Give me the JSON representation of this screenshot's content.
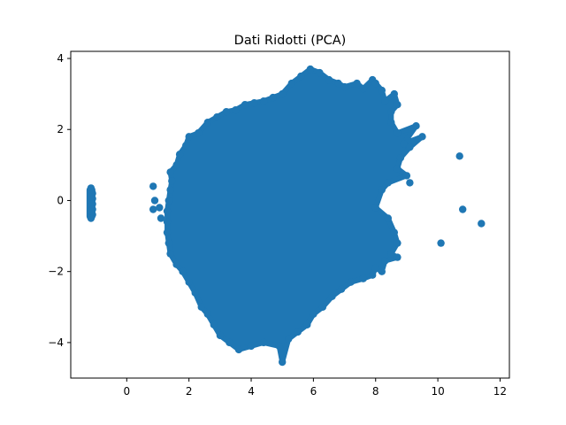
{
  "chart_data": {
    "type": "scatter",
    "title": "Dati Ridotti (PCA)",
    "xlabel": "",
    "ylabel": "",
    "xlim": [
      -1.8,
      12.3
    ],
    "ylim": [
      -5.0,
      4.2
    ],
    "x_ticks": [
      0,
      2,
      4,
      6,
      8,
      10,
      12
    ],
    "y_ticks": [
      -4,
      -2,
      0,
      2,
      4
    ],
    "x_tick_labels": [
      "0",
      "2",
      "4",
      "6",
      "8",
      "10",
      "12"
    ],
    "y_tick_labels": [
      "−4",
      "−2",
      "0",
      "2",
      "4"
    ],
    "marker_color": "#1f77b4",
    "grid": false,
    "legend": "none",
    "series": [
      {
        "points": [
          [
            -1.15,
            0.35
          ],
          [
            -1.1,
            0.2
          ],
          [
            -1.1,
            0.05
          ],
          [
            -1.1,
            -0.1
          ],
          [
            -1.1,
            -0.25
          ],
          [
            -1.1,
            -0.4
          ],
          [
            -1.15,
            -0.5
          ],
          [
            -1.15,
            0.1
          ],
          [
            -1.15,
            -0.3
          ],
          [
            0.85,
            0.4
          ],
          [
            0.9,
            0.0
          ],
          [
            0.85,
            -0.25
          ],
          [
            1.1,
            -0.5
          ],
          [
            1.05,
            -0.2
          ],
          [
            1.4,
            0.8
          ],
          [
            1.6,
            1.0
          ],
          [
            1.7,
            1.3
          ],
          [
            1.9,
            1.55
          ],
          [
            2.0,
            1.8
          ],
          [
            2.3,
            1.9
          ],
          [
            2.6,
            2.2
          ],
          [
            2.9,
            2.35
          ],
          [
            3.2,
            2.5
          ],
          [
            3.5,
            2.55
          ],
          [
            3.8,
            2.7
          ],
          [
            4.1,
            2.75
          ],
          [
            4.4,
            2.8
          ],
          [
            4.7,
            2.9
          ],
          [
            5.0,
            3.0
          ],
          [
            5.3,
            3.3
          ],
          [
            5.6,
            3.5
          ],
          [
            5.9,
            3.7
          ],
          [
            6.2,
            3.6
          ],
          [
            6.5,
            3.4
          ],
          [
            6.8,
            3.3
          ],
          [
            7.0,
            3.2
          ],
          [
            7.4,
            3.3
          ],
          [
            7.6,
            3.15
          ],
          [
            7.9,
            3.4
          ],
          [
            8.0,
            3.3
          ],
          [
            8.2,
            3.1
          ],
          [
            8.3,
            2.8
          ],
          [
            8.5,
            2.5
          ],
          [
            8.7,
            2.7
          ],
          [
            8.6,
            3.0
          ],
          [
            8.5,
            2.2
          ],
          [
            8.7,
            1.9
          ],
          [
            8.9,
            1.6
          ],
          [
            9.1,
            1.5
          ],
          [
            9.3,
            2.1
          ],
          [
            9.5,
            1.8
          ],
          [
            8.8,
            1.2
          ],
          [
            8.7,
            0.9
          ],
          [
            9.0,
            0.7
          ],
          [
            9.1,
            0.5
          ],
          [
            8.4,
            0.5
          ],
          [
            8.2,
            0.3
          ],
          [
            8.0,
            -0.2
          ],
          [
            8.4,
            -0.5
          ],
          [
            8.6,
            -0.9
          ],
          [
            8.7,
            -1.2
          ],
          [
            8.5,
            -1.5
          ],
          [
            8.7,
            -1.6
          ],
          [
            8.3,
            -1.7
          ],
          [
            8.0,
            -1.9
          ],
          [
            8.2,
            -2.0
          ],
          [
            7.9,
            -2.1
          ],
          [
            7.6,
            -2.2
          ],
          [
            7.2,
            -2.3
          ],
          [
            6.9,
            -2.5
          ],
          [
            6.6,
            -2.7
          ],
          [
            6.3,
            -3.0
          ],
          [
            6.0,
            -3.2
          ],
          [
            5.8,
            -3.5
          ],
          [
            5.5,
            -3.7
          ],
          [
            5.2,
            -3.9
          ],
          [
            4.9,
            -4.1
          ],
          [
            5.0,
            -4.55
          ],
          [
            4.4,
            -4.0
          ],
          [
            4.0,
            -4.1
          ],
          [
            3.6,
            -4.2
          ],
          [
            3.3,
            -4.0
          ],
          [
            3.0,
            -3.8
          ],
          [
            2.8,
            -3.5
          ],
          [
            2.6,
            -3.2
          ],
          [
            2.4,
            -3.0
          ],
          [
            2.2,
            -2.6
          ],
          [
            2.0,
            -2.3
          ],
          [
            1.8,
            -2.0
          ],
          [
            1.6,
            -1.8
          ],
          [
            1.4,
            -1.5
          ],
          [
            1.35,
            -1.2
          ],
          [
            1.3,
            -0.9
          ],
          [
            1.3,
            -0.6
          ],
          [
            1.3,
            -0.3
          ],
          [
            1.35,
            0.0
          ],
          [
            1.4,
            0.3
          ],
          [
            1.45,
            0.55
          ],
          [
            10.7,
            1.25
          ],
          [
            10.8,
            -0.25
          ],
          [
            10.1,
            -1.2
          ],
          [
            11.4,
            -0.65
          ]
        ]
      }
    ]
  }
}
